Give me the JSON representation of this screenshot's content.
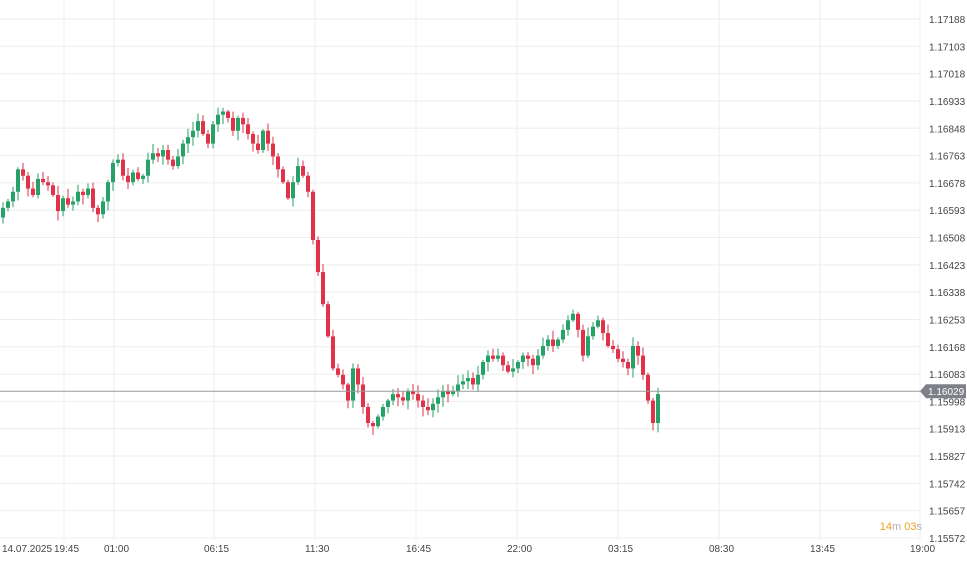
{
  "chart_data": {
    "type": "candlestick",
    "y_ticks": [
      "1.17188",
      "1.17103",
      "1.17018",
      "1.16933",
      "1.16848",
      "1.16763",
      "1.16678",
      "1.16593",
      "1.16508",
      "1.16423",
      "1.16338",
      "1.16253",
      "1.16168",
      "1.16083",
      "1.15998",
      "1.15913",
      "1.15827",
      "1.15742",
      "1.15657",
      "1.15572"
    ],
    "x_ticks": [
      "14.07.2025",
      "19:45",
      "01:00",
      "06:15",
      "11:30",
      "16:45",
      "22:00",
      "03:15",
      "08:30",
      "13:45",
      "19:00"
    ],
    "ylim": [
      1.15572,
      1.17188
    ],
    "current_price": "1.16029",
    "grid": true,
    "up_color": "#26a269",
    "down_color": "#e0334a",
    "close_series": [
      1.166,
      1.1662,
      1.1665,
      1.1672,
      1.167,
      1.1666,
      1.1664,
      1.1669,
      1.1668,
      1.1667,
      1.1664,
      1.1659,
      1.1663,
      1.1661,
      1.1662,
      1.1665,
      1.1664,
      1.1666,
      1.166,
      1.1658,
      1.1662,
      1.1668,
      1.1674,
      1.1675,
      1.167,
      1.1668,
      1.1671,
      1.1669,
      1.167,
      1.1675,
      1.1677,
      1.1676,
      1.1678,
      1.1675,
      1.1673,
      1.1676,
      1.168,
      1.1682,
      1.1684,
      1.1687,
      1.1683,
      1.168,
      1.1686,
      1.1689,
      1.169,
      1.1688,
      1.1684,
      1.1688,
      1.1686,
      1.1683,
      1.168,
      1.1678,
      1.1684,
      1.168,
      1.1676,
      1.1672,
      1.1668,
      1.1663,
      1.1668,
      1.1673,
      1.167,
      1.1665,
      1.165,
      1.164,
      1.163,
      1.162,
      1.161,
      1.1608,
      1.1605,
      1.16,
      1.161,
      1.1605,
      1.1598,
      1.1593,
      1.1592,
      1.1595,
      1.1598,
      1.16,
      1.1602,
      1.1601,
      1.16,
      1.1603,
      1.1602,
      1.16,
      1.1598,
      1.1597,
      1.1599,
      1.1601,
      1.1603,
      1.1602,
      1.1603,
      1.1605,
      1.1606,
      1.1607,
      1.1605,
      1.1608,
      1.1612,
      1.1614,
      1.1613,
      1.1614,
      1.1611,
      1.1609,
      1.161,
      1.1612,
      1.1614,
      1.1613,
      1.1611,
      1.1614,
      1.1617,
      1.1619,
      1.1617,
      1.1619,
      1.1622,
      1.1625,
      1.1627,
      1.1622,
      1.1614,
      1.162,
      1.1623,
      1.1625,
      1.1621,
      1.1617,
      1.1616,
      1.1613,
      1.1612,
      1.161,
      1.1617,
      1.1614,
      1.1608,
      1.16,
      1.1593,
      1.1602
    ]
  },
  "timer": {
    "minutes": "14",
    "min_unit": "m",
    "seconds": "03",
    "sec_unit": "s"
  }
}
